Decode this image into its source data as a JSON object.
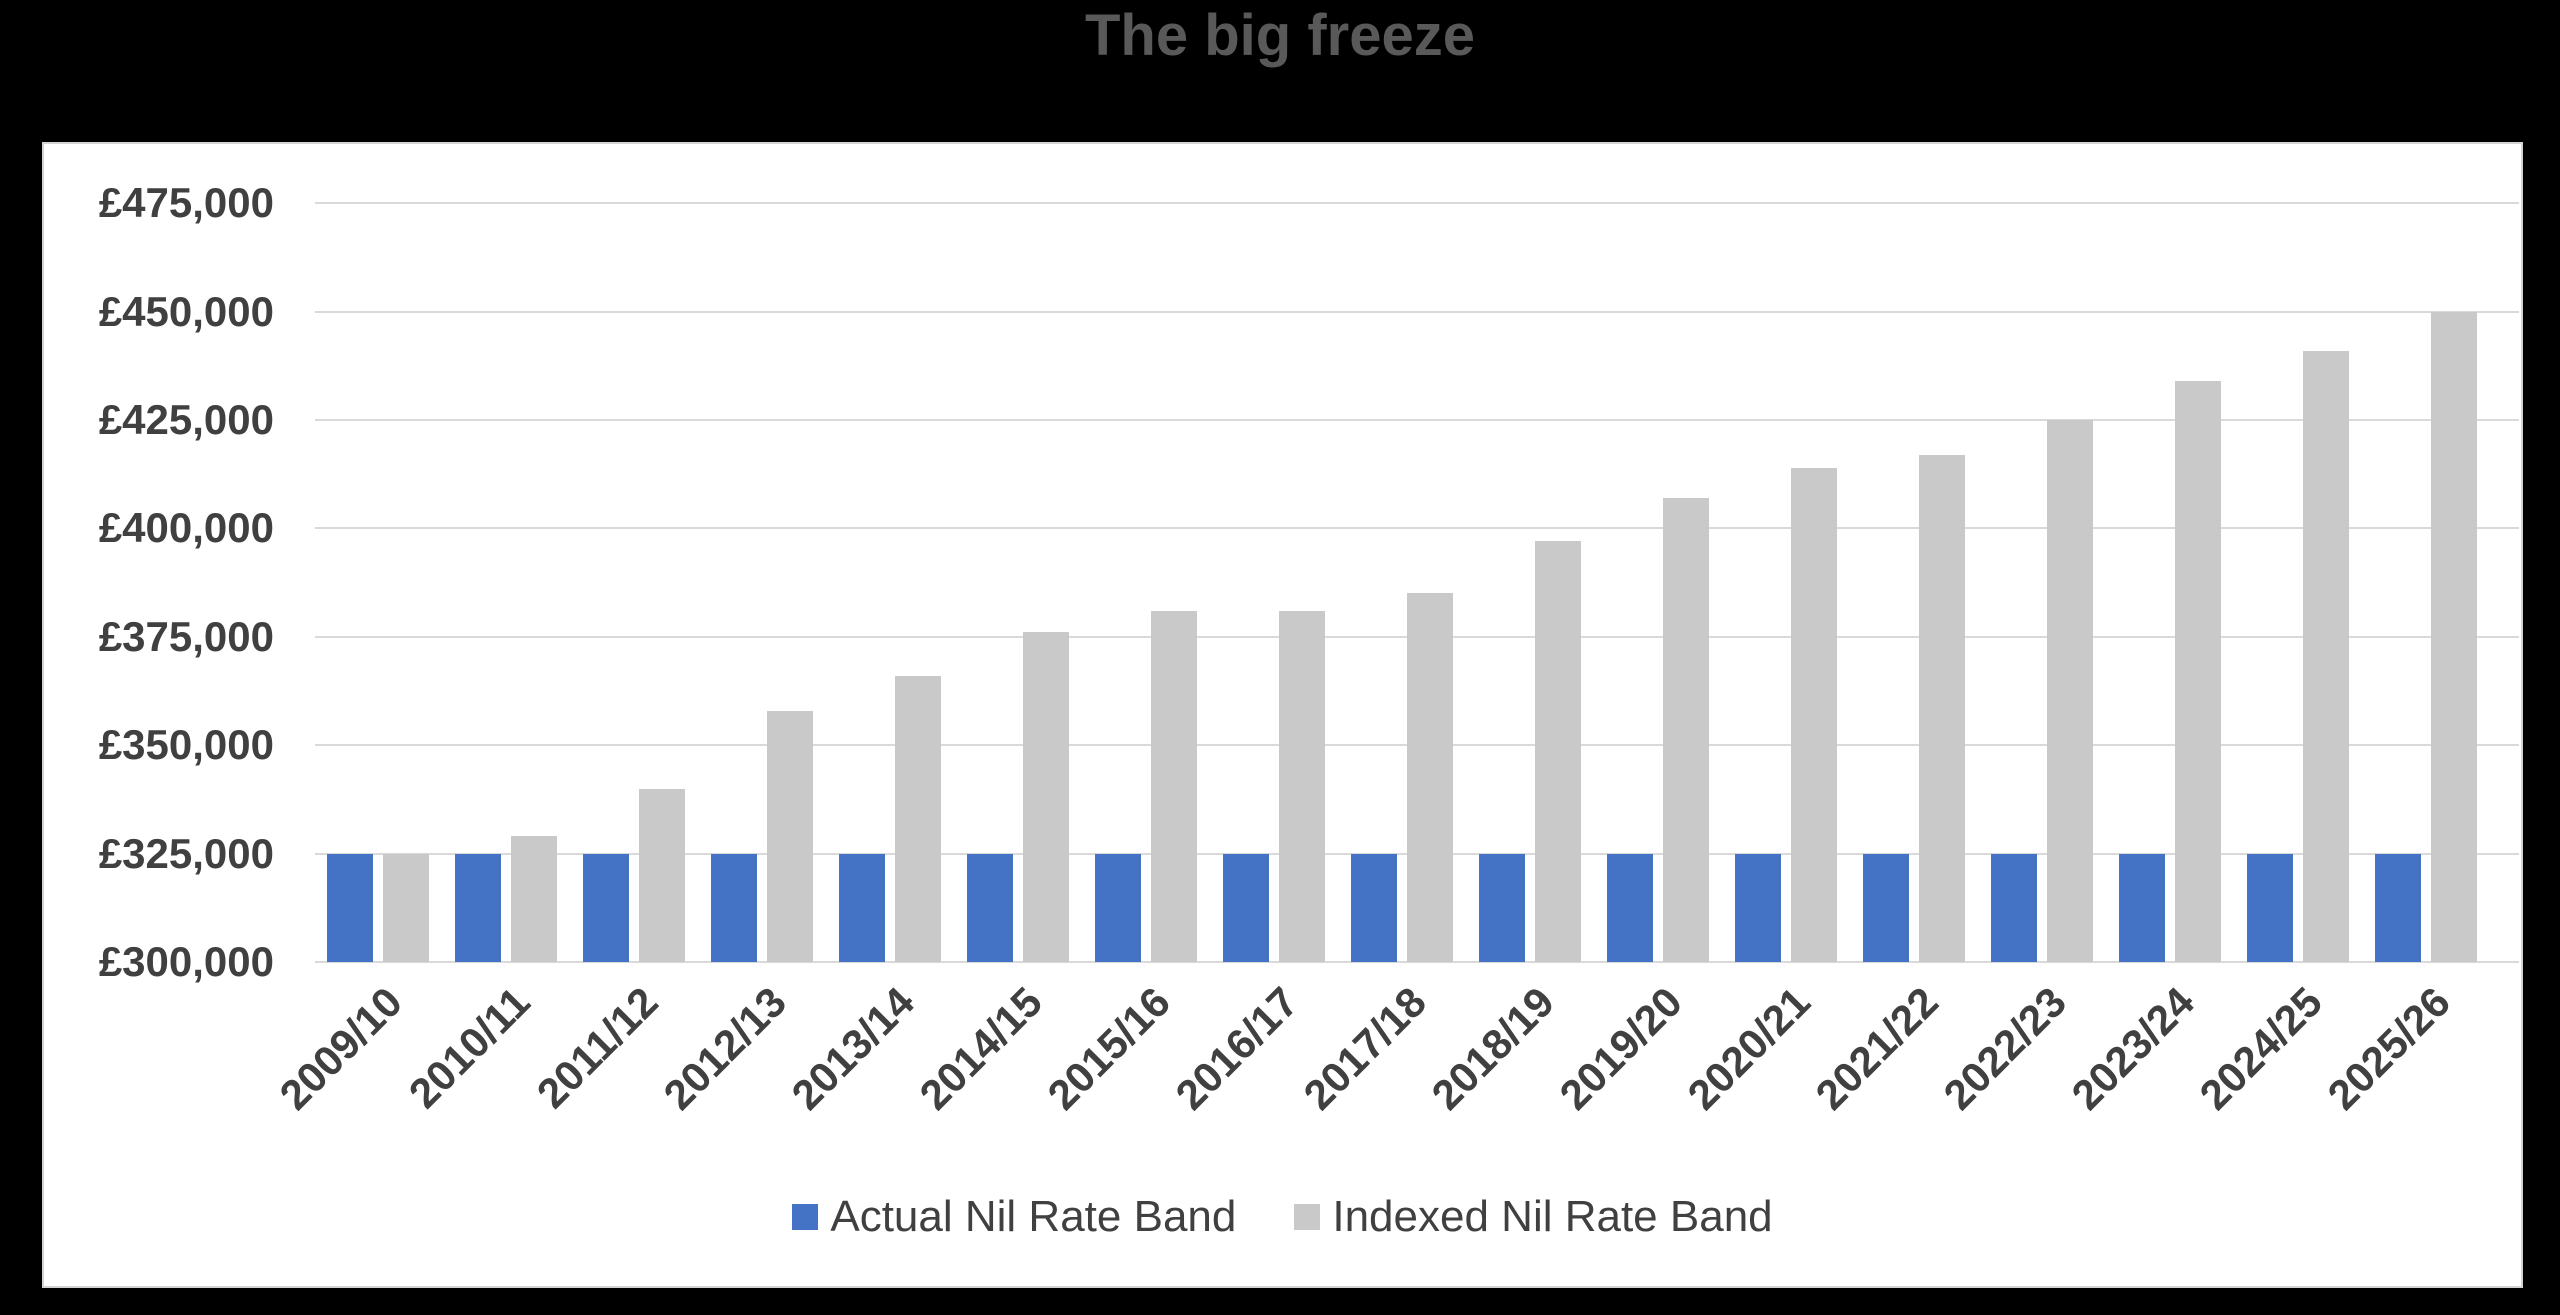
{
  "title": {
    "text": "The big freeze"
  },
  "colors": {
    "background": "#000000",
    "panel": "#FFFFFF",
    "panel_border": "#D3D3D3",
    "gridline": "#D9D9D9",
    "axis_text": "#404040",
    "title_text": "#595959",
    "legend_text": "#404040",
    "actual_bar": "#4472C4",
    "indexed_bar": "#C9C9C9"
  },
  "chart_data": {
    "type": "bar",
    "title": "The big freeze",
    "categories": [
      "2009/10",
      "2010/11",
      "2011/12",
      "2012/13",
      "2013/14",
      "2014/15",
      "2015/16",
      "2016/17",
      "2017/18",
      "2018/19",
      "2019/20",
      "2020/21",
      "2021/22",
      "2022/23",
      "2023/24",
      "2024/25",
      "2025/26"
    ],
    "series": [
      {
        "name": "Actual Nil Rate Band",
        "color": "#4472C4",
        "values": [
          325000,
          325000,
          325000,
          325000,
          325000,
          325000,
          325000,
          325000,
          325000,
          325000,
          325000,
          325000,
          325000,
          325000,
          325000,
          325000,
          325000
        ]
      },
      {
        "name": "Indexed Nil Rate Band",
        "color": "#C9C9C9",
        "values": [
          325000,
          329000,
          340000,
          358000,
          366000,
          376000,
          381000,
          381000,
          385000,
          397000,
          407000,
          414000,
          417000,
          425000,
          434000,
          441000,
          450000
        ]
      }
    ],
    "xlabel": "",
    "ylabel": "",
    "ylim": [
      300000,
      475000
    ],
    "ytick_step": 25000,
    "ytick_labels": [
      "£300,000",
      "£325,000",
      "£350,000",
      "£375,000",
      "£400,000",
      "£425,000",
      "£450,000",
      "£475,000"
    ],
    "grid": true,
    "legend_position": "bottom",
    "x_tick_rotation_deg": 45
  }
}
